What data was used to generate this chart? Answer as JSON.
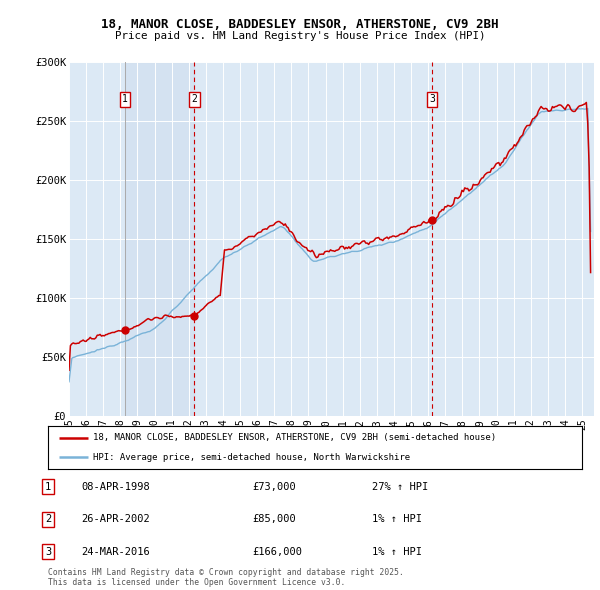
{
  "title_line1": "18, MANOR CLOSE, BADDESLEY ENSOR, ATHERSTONE, CV9 2BH",
  "title_line2": "Price paid vs. HM Land Registry's House Price Index (HPI)",
  "background_color": "#ffffff",
  "plot_bg_color": "#dce9f5",
  "shade_color": "#c8d8ec",
  "grid_color": "#ffffff",
  "hpi_color": "#7ab3d8",
  "price_color": "#cc0000",
  "vline_color_solid": "#aaaaaa",
  "vline_color_dashed": "#cc0000",
  "sale_dates": [
    1998.27,
    2002.32,
    2016.23
  ],
  "sale_prices": [
    73000,
    85000,
    166000
  ],
  "sale_labels": [
    "1",
    "2",
    "3"
  ],
  "legend_line1": "18, MANOR CLOSE, BADDESLEY ENSOR, ATHERSTONE, CV9 2BH (semi-detached house)",
  "legend_line2": "HPI: Average price, semi-detached house, North Warwickshire",
  "table_data": [
    [
      "1",
      "08-APR-1998",
      "£73,000",
      "27% ↑ HPI"
    ],
    [
      "2",
      "26-APR-2002",
      "£85,000",
      "1% ↑ HPI"
    ],
    [
      "3",
      "24-MAR-2016",
      "£166,000",
      "1% ↑ HPI"
    ]
  ],
  "footer": "Contains HM Land Registry data © Crown copyright and database right 2025.\nThis data is licensed under the Open Government Licence v3.0.",
  "ylim": [
    0,
    300000
  ],
  "yticks": [
    0,
    50000,
    100000,
    150000,
    200000,
    250000,
    300000
  ],
  "ytick_labels": [
    "£0",
    "£50K",
    "£100K",
    "£150K",
    "£200K",
    "£250K",
    "£300K"
  ],
  "xmin": 1995.0,
  "xmax": 2025.7
}
